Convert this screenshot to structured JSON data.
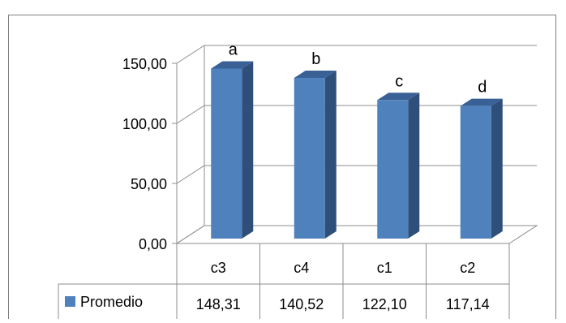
{
  "chart_data": {
    "type": "bar",
    "style": "3d-column-with-data-table",
    "categories": [
      "c3",
      "c4",
      "c1",
      "c2"
    ],
    "series": [
      {
        "name": "Promedio",
        "values": [
          148.31,
          140.52,
          122.1,
          117.14
        ],
        "color": "#4F81BD"
      }
    ],
    "value_labels": [
      "148,31",
      "140,52",
      "122,10",
      "117,14"
    ],
    "annotations": [
      "a",
      "b",
      "c",
      "d"
    ],
    "y_ticks": [
      "0,00",
      "50,00",
      "100,00",
      "150,00"
    ],
    "ylim": [
      0,
      150
    ],
    "grid": true,
    "legend": "data-table-row"
  }
}
